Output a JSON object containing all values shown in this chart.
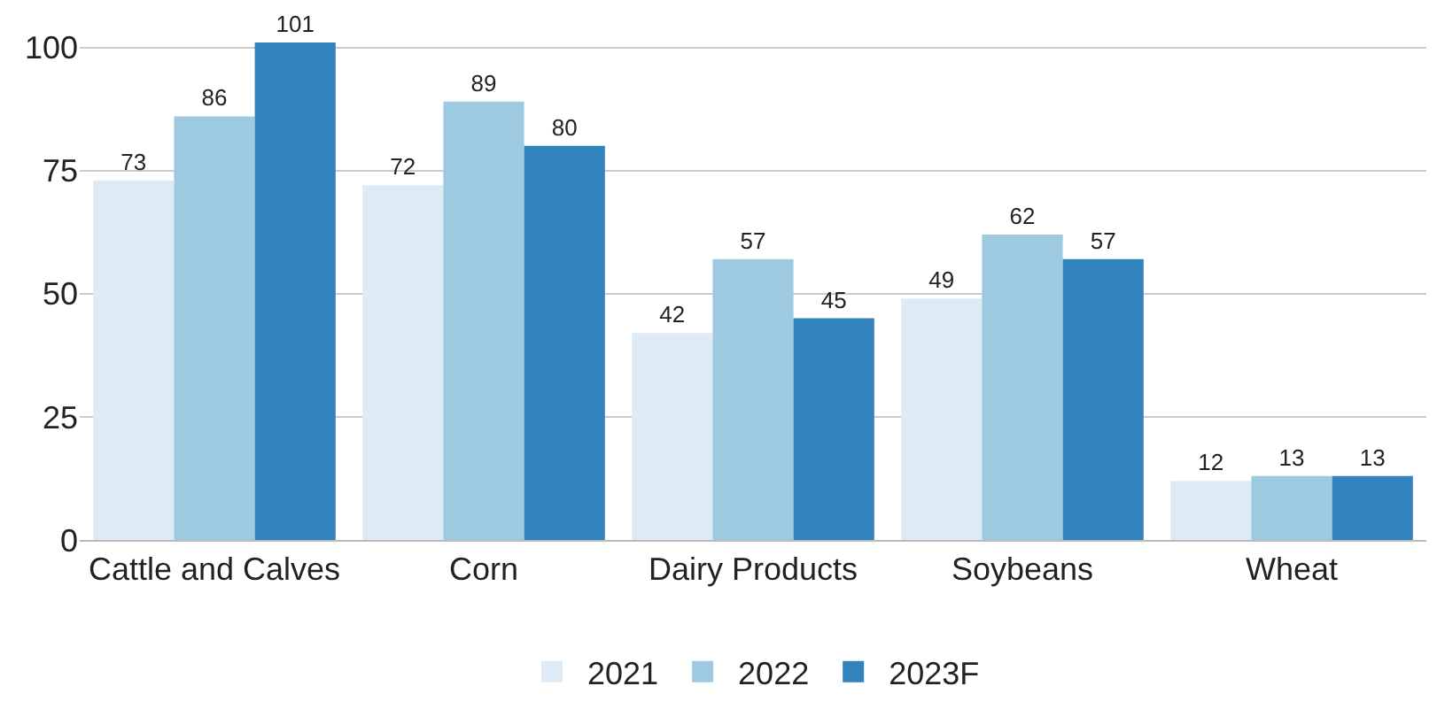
{
  "chart_data": {
    "type": "bar",
    "categories": [
      "Cattle and Calves",
      "Corn",
      "Dairy Products",
      "Soybeans",
      "Wheat"
    ],
    "series": [
      {
        "name": "2021",
        "color": "#deebf7",
        "values": [
          73,
          72,
          42,
          49,
          12
        ]
      },
      {
        "name": "2022",
        "color": "#9ecae1",
        "values": [
          86,
          89,
          57,
          62,
          13
        ]
      },
      {
        "name": "2023F",
        "color": "#3182bd",
        "values": [
          101,
          80,
          45,
          57,
          13
        ]
      }
    ],
    "ylim": [
      0,
      101
    ],
    "yticks": [
      0,
      25,
      50,
      75,
      100
    ],
    "grid": "y",
    "legend": "bottom",
    "data_labels": true
  }
}
